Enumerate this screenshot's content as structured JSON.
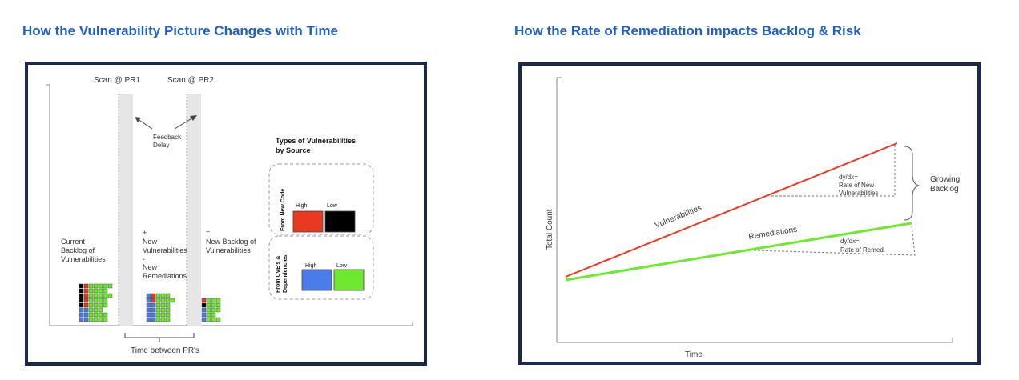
{
  "left_title": "How the Vulnerability Picture Changes with Time",
  "right_title": "How the Rate of Remediation impacts Backlog & Risk",
  "left_diagram": {
    "scan1": "Scan @ PR1",
    "scan2": "Scan @ PR2",
    "feedback_1": "Feedback",
    "feedback_2": "Delay",
    "backlog_1": "Current",
    "backlog_2": "Backlog of",
    "backlog_3": "Vulnerabilities",
    "plus": "+",
    "new_vulns_1": "New",
    "new_vulns_2": "Vulnerabilities",
    "minus": "-",
    "new_rem_1": "New",
    "new_rem_2": "Remediations",
    "equals": "=",
    "new_backlog_1": "New Backlog of",
    "new_backlog_2": "Vulnerabilities",
    "time_between": "Time between PR's",
    "legend_title_1": "Types of Vulnerabilities",
    "legend_title_2": "by Source",
    "group1_label": "From New Code",
    "group2_label_1": "From CVE's &",
    "group2_label_2": "Dependencies",
    "high": "High",
    "low": "Low",
    "colors": {
      "new_high": "#e8381f",
      "new_low": "#000000",
      "dep_high": "#4a7de8",
      "dep_low": "#6fe830"
    }
  },
  "right_diagram": {
    "ylabel": "Total Count",
    "xlabel": "Time",
    "vuln_label": "Vulnerabilities",
    "rem_label": "Remediations",
    "slope1_1": "dy/dx=",
    "slope1_2": "Rate of New",
    "slope1_3": "Vulnerabilities",
    "slope2_1": "dy/dx=",
    "slope2_2": "Rate of Remed.",
    "growing_1": "Growing",
    "growing_2": "Backlog",
    "colors": {
      "vulnerabilities": "#e8381f",
      "remediations": "#6fe830"
    }
  }
}
